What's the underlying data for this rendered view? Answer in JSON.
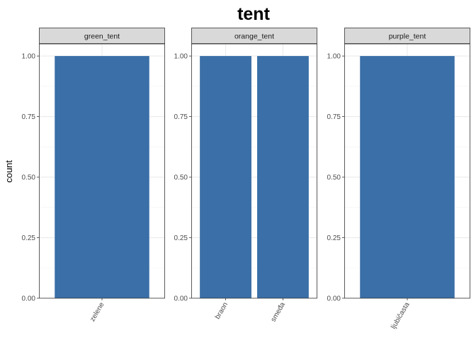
{
  "chart_data": {
    "type": "bar",
    "title": "tent",
    "ylabel": "count",
    "xlabel": "",
    "ylim": [
      0,
      1.05
    ],
    "y_ticks": [
      0,
      0.25,
      0.5,
      0.75,
      1
    ],
    "y_tick_labels": [
      "0.00",
      "0.25",
      "0.50",
      "0.75",
      "1.00"
    ],
    "grid": true,
    "bar_color": "#3A6FA7",
    "facets": [
      {
        "label": "green_tent",
        "categories": [
          "zelene"
        ],
        "values": [
          1
        ]
      },
      {
        "label": "orange_tent",
        "categories": [
          "braon",
          "smeđa"
        ],
        "values": [
          1,
          1
        ]
      },
      {
        "label": "purple_tent",
        "categories": [
          "ljubičasta"
        ],
        "values": [
          1
        ]
      }
    ]
  }
}
